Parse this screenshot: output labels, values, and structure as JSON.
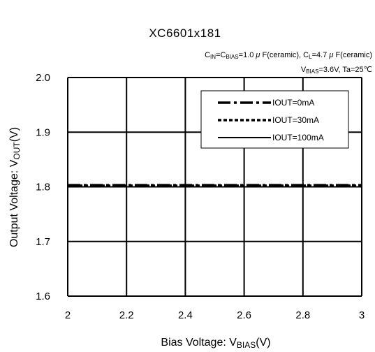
{
  "chart_data": {
    "type": "line",
    "title": "XC6601x181",
    "conditions": [
      "Cᵢₙ=C_BIAS=1.0μF(ceramic), C_L=4.7μF(ceramic)",
      "V_BIAS=3.6V, Ta=25℃"
    ],
    "xlabel": "Bias Voltage: V_BIAS(V)",
    "ylabel": "Output Voltage: V_OUT(V)",
    "xlim": [
      2,
      3
    ],
    "ylim": [
      1.6,
      2.0
    ],
    "xticks": [
      "2",
      "2.2",
      "2.4",
      "2.6",
      "2.8",
      "3"
    ],
    "yticks": [
      "1.6",
      "1.7",
      "1.8",
      "1.9",
      "2.0"
    ],
    "grid": true,
    "legend_position": "top-right",
    "series": [
      {
        "name": "IOUT=0mA",
        "style": "dash-dot",
        "x": [
          2,
          3
        ],
        "y": [
          1.803,
          1.803
        ]
      },
      {
        "name": "IOUT=30mA",
        "style": "dotted",
        "x": [
          2,
          3
        ],
        "y": [
          1.802,
          1.802
        ]
      },
      {
        "name": "IOUT=100mA",
        "style": "solid",
        "x": [
          2,
          3
        ],
        "y": [
          1.8,
          1.8
        ]
      }
    ]
  }
}
